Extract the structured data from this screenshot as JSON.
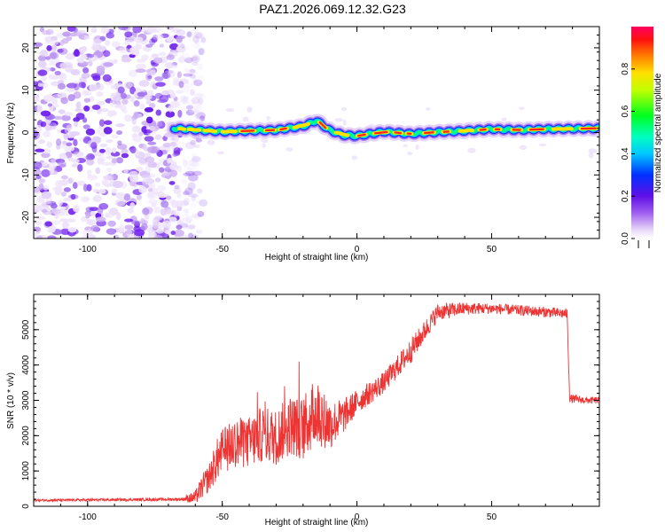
{
  "title": "PAZ1.2026.069.12.32.G23",
  "colors": {
    "snr_line": "#ee3333",
    "axis": "#000000"
  },
  "chart_data": [
    {
      "type": "heatmap",
      "name": "spectrogram",
      "xlabel": "Height of straight line (km)",
      "ylabel": "Frequency (Hz)",
      "xlim": [
        -120,
        90
      ],
      "ylim": [
        -25,
        25
      ],
      "xticks": [
        -100,
        -50,
        0,
        50
      ],
      "xtick_labels": [
        "-100",
        "-50",
        "0",
        "50"
      ],
      "yticks": [
        -20,
        -10,
        0,
        10,
        20
      ],
      "ytick_labels": [
        "-20",
        "-10",
        "0",
        "10",
        "20"
      ],
      "noise_region_x": [
        -120,
        -65
      ],
      "signal_start_x": -68,
      "signal_track": [
        [
          -68,
          1.0
        ],
        [
          -50,
          0.2
        ],
        [
          -30,
          0.6
        ],
        [
          -20,
          1.5
        ],
        [
          -15,
          2.8
        ],
        [
          -10,
          0.5
        ],
        [
          -5,
          -0.6
        ],
        [
          0,
          -0.8
        ],
        [
          10,
          0.2
        ],
        [
          20,
          -0.3
        ],
        [
          30,
          0.1
        ],
        [
          40,
          0.4
        ],
        [
          50,
          0.8
        ],
        [
          60,
          0.6
        ],
        [
          70,
          0.8
        ],
        [
          80,
          0.9
        ],
        [
          90,
          1.0
        ]
      ],
      "colorbar": {
        "label": "Normalized spectral amplitude",
        "ticks": [
          0.0,
          0.2,
          0.4,
          0.6,
          0.8
        ],
        "tick_labels": [
          "0.0",
          "0.2",
          "0.4",
          "0.6",
          "0.8"
        ],
        "range": [
          0,
          1
        ]
      }
    },
    {
      "type": "line",
      "name": "snr",
      "xlabel": "Height of straight line (km)",
      "ylabel": "SNR (10 * v/v)",
      "xlim": [
        -120,
        90
      ],
      "ylim": [
        0,
        6000
      ],
      "xticks": [
        -100,
        -50,
        0,
        50
      ],
      "xtick_labels": [
        "-100",
        "-50",
        "0",
        "50"
      ],
      "yticks": [
        0,
        1000,
        2000,
        3000,
        4000,
        5000
      ],
      "ytick_labels": [
        "0",
        "1000",
        "2000",
        "3000",
        "4000",
        "5000"
      ],
      "series": [
        {
          "name": "SNR",
          "x": [
            -120,
            -100,
            -80,
            -65,
            -60,
            -57,
            -55,
            -52,
            -50,
            -45,
            -40,
            -35,
            -30,
            -25,
            -20,
            -15,
            -10,
            -5,
            0,
            10,
            20,
            30,
            40,
            50,
            60,
            70,
            78,
            79,
            85,
            90
          ],
          "y": [
            170,
            180,
            190,
            200,
            250,
            600,
            800,
            1300,
            1550,
            1800,
            1800,
            2050,
            1950,
            2300,
            2200,
            2700,
            2300,
            2550,
            2950,
            3500,
            4400,
            5500,
            5600,
            5600,
            5550,
            5500,
            5450,
            3050,
            3000,
            3000
          ],
          "noise_amplitude": [
            30,
            35,
            40,
            45,
            200,
            350,
            400,
            600,
            650,
            700,
            750,
            800,
            800,
            850,
            900,
            1000,
            700,
            500,
            350,
            300,
            350,
            250,
            180,
            150,
            150,
            150,
            150,
            120,
            100,
            100
          ]
        }
      ]
    }
  ]
}
